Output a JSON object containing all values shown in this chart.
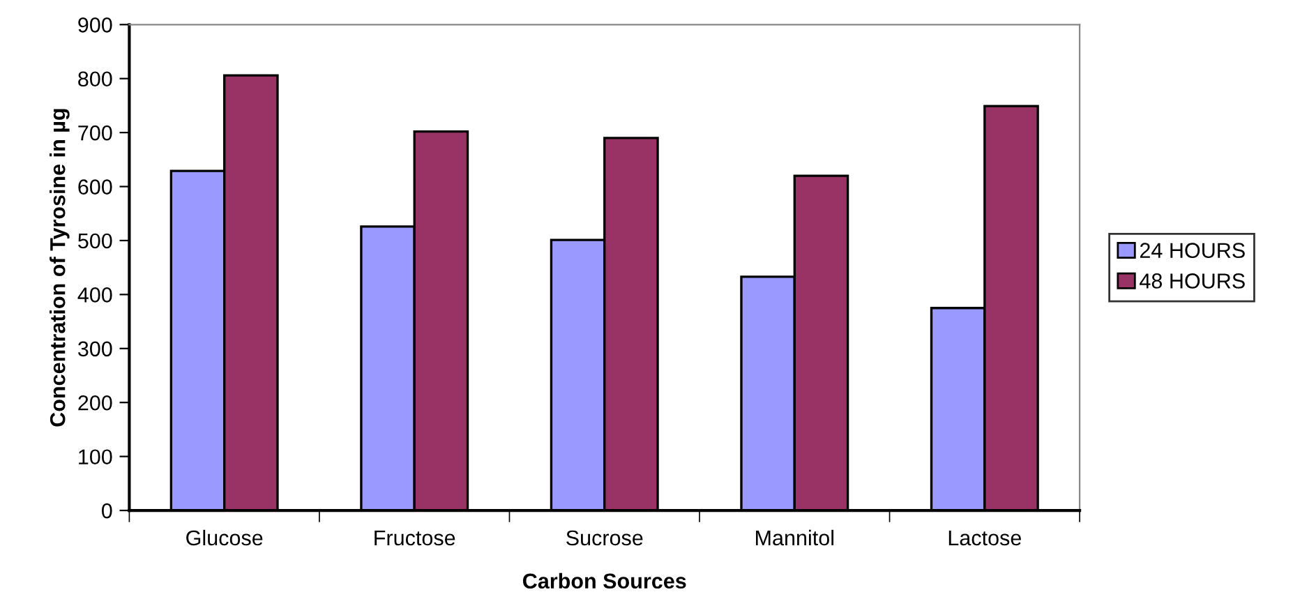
{
  "chart_data": {
    "type": "bar",
    "xlabel": "Carbon Sources",
    "ylabel": "Concentration of Tyrosine in µg",
    "categories": [
      "Glucose",
      "Fructose",
      "Sucrose",
      "Mannitol",
      "Lactose"
    ],
    "series": [
      {
        "name": "24 HOURS",
        "color": "#9999ff",
        "values": [
          629,
          526,
          501,
          433,
          375
        ]
      },
      {
        "name": "48 HOURS",
        "color": "#993366",
        "values": [
          806,
          702,
          690,
          620,
          749
        ]
      }
    ],
    "ylim": [
      0,
      900
    ],
    "yticks": [
      0,
      100,
      200,
      300,
      400,
      500,
      600,
      700,
      800,
      900
    ],
    "grid": false,
    "legend": "right"
  }
}
